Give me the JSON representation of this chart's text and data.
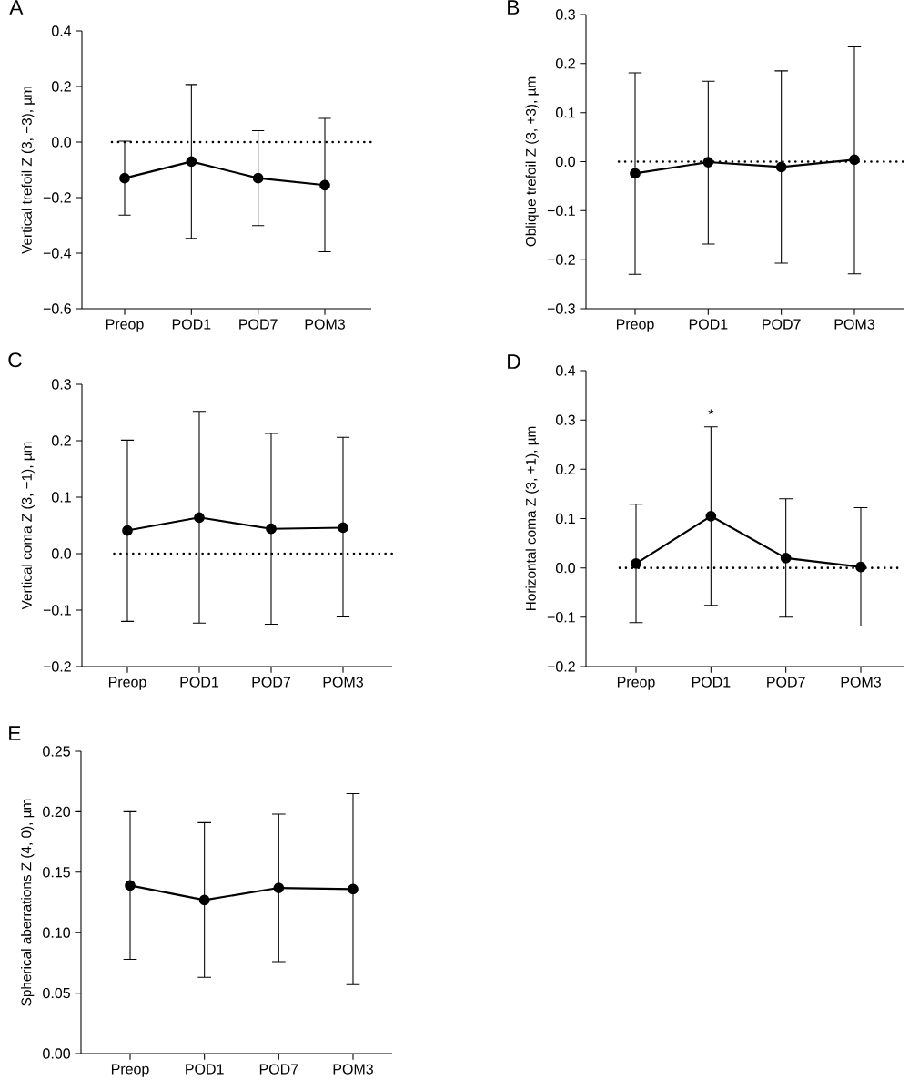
{
  "chart_data": [
    {
      "type": "line",
      "title": "A",
      "ylabel": "Vertical trefoil Z (3, −3), µm",
      "categories": [
        "Preop",
        "POD1",
        "POD7",
        "POM3"
      ],
      "values": [
        -0.13,
        -0.07,
        -0.13,
        -0.155
      ],
      "errors": [
        0.133,
        0.277,
        0.171,
        0.24
      ],
      "color": "#000000",
      "marker": "circle",
      "line_style": "solid",
      "ylim": [
        -0.6,
        0.4
      ],
      "yticks": [
        {
          "value": -0.6,
          "label": "−0.6"
        },
        {
          "value": -0.4,
          "label": "−0.4"
        },
        {
          "value": -0.2,
          "label": "−0.2"
        },
        {
          "value": 0,
          "label": "0.0"
        },
        {
          "value": 0.2,
          "label": "0.2"
        },
        {
          "value": 0.4,
          "label": "0.4"
        }
      ],
      "ref_lines": [
        {
          "axis": "y",
          "value": 0,
          "color": "#000000",
          "line_style": "dotted"
        }
      ]
    },
    {
      "type": "line",
      "title": "B",
      "ylabel": "Oblique trefoil Z (3, +3), µm",
      "categories": [
        "Preop",
        "POD1",
        "POD7",
        "POM3"
      ],
      "values": [
        -0.024,
        -0.001,
        -0.011,
        0.004
      ],
      "errors": [
        [
          -0.23,
          0.181
        ],
        [
          -0.168,
          0.164
        ],
        [
          -0.207,
          0.185
        ],
        [
          -0.229,
          0.234
        ]
      ],
      "color": "#000000",
      "marker": "circle",
      "line_style": "solid",
      "ylim": [
        -0.3,
        0.3
      ],
      "yticks": [
        {
          "value": -0.3,
          "label": "−0.3"
        },
        {
          "value": -0.2,
          "label": "−0.2"
        },
        {
          "value": -0.1,
          "label": "−0.1"
        },
        {
          "value": 0,
          "label": "0.0"
        },
        {
          "value": 0.1,
          "label": "0.1"
        },
        {
          "value": 0.2,
          "label": "0.2"
        },
        {
          "value": 0.3,
          "label": "0.3"
        }
      ],
      "ref_lines": [
        {
          "axis": "y",
          "value": 0,
          "color": "#000000",
          "line_style": "dotted"
        }
      ]
    },
    {
      "type": "line",
      "title": "C",
      "ylabel": "Vertical coma Z (3, −1), µm",
      "categories": [
        "Preop",
        "POD1",
        "POD7",
        "POM3"
      ],
      "values": [
        0.041,
        0.064,
        0.044,
        0.046
      ],
      "errors": [
        [
          -0.12,
          0.201
        ],
        [
          -0.123,
          0.252
        ],
        [
          -0.125,
          0.213
        ],
        [
          -0.112,
          0.206
        ]
      ],
      "color": "#000000",
      "marker": "circle",
      "line_style": "solid",
      "ylim": [
        -0.2,
        0.3
      ],
      "yticks": [
        {
          "value": -0.2,
          "label": "−0.2"
        },
        {
          "value": -0.1,
          "label": "−0.1"
        },
        {
          "value": 0,
          "label": "0.0"
        },
        {
          "value": 0.1,
          "label": "0.1"
        },
        {
          "value": 0.2,
          "label": "0.2"
        },
        {
          "value": 0.3,
          "label": "0.3"
        }
      ],
      "ref_lines": [
        {
          "axis": "y",
          "value": 0,
          "color": "#000000",
          "line_style": "dotted"
        }
      ]
    },
    {
      "type": "line",
      "title": "D",
      "ylabel": "Horizontal coma Z (3, +1), µm",
      "categories": [
        "Preop",
        "POD1",
        "POD7",
        "POM3"
      ],
      "values": [
        0.009,
        0.105,
        0.02,
        0.002
      ],
      "errors": [
        0.12,
        0.181,
        0.12,
        0.12
      ],
      "color": "#000000",
      "marker": "circle",
      "line_style": "solid",
      "ylim": [
        -0.2,
        0.4
      ],
      "yticks": [
        {
          "value": -0.2,
          "label": "−0.2"
        },
        {
          "value": -0.1,
          "label": "−0.1"
        },
        {
          "value": 0,
          "label": "0.0"
        },
        {
          "value": 0.1,
          "label": "0.1"
        },
        {
          "value": 0.2,
          "label": "0.2"
        },
        {
          "value": 0.3,
          "label": "0.3"
        },
        {
          "value": 0.4,
          "label": "0.4"
        }
      ],
      "ref_lines": [
        {
          "axis": "y",
          "value": 0,
          "color": "#000000",
          "line_style": "dotted"
        }
      ],
      "annotations": [
        "*"
      ]
    },
    {
      "type": "line",
      "title": "E",
      "ylabel": "Spherical aberrations Z (4, 0), µm",
      "categories": [
        "Preop",
        "POD1",
        "POD7",
        "POM3"
      ],
      "values": [
        0.139,
        0.127,
        0.137,
        0.136
      ],
      "errors": [
        0.061,
        0.064,
        0.061,
        0.079
      ],
      "color": "#000000",
      "marker": "circle",
      "line_style": "solid",
      "ylim": [
        0,
        0.25
      ],
      "yticks": [
        {
          "value": 0,
          "label": "0.00"
        },
        {
          "value": 0.05,
          "label": "0.05"
        },
        {
          "value": 0.1,
          "label": "0.10"
        },
        {
          "value": 0.15,
          "label": "0.15"
        },
        {
          "value": 0.2,
          "label": "0.20"
        },
        {
          "value": 0.25,
          "label": "0.25"
        }
      ]
    }
  ]
}
